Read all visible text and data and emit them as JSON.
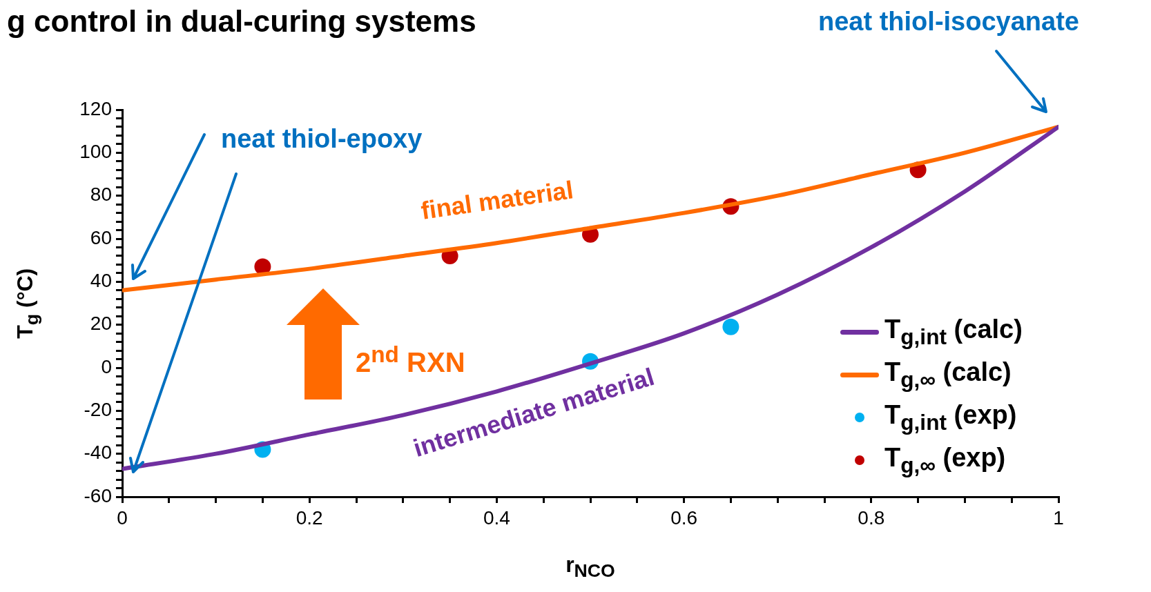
{
  "chart_data": {
    "type": "line",
    "title": "g control in dual-curing systems",
    "xlabel": "r$_{NCO}$",
    "ylabel": "T$_{g}$ (°C)",
    "xlim": [
      0,
      1
    ],
    "ylim": [
      -60,
      120
    ],
    "xticks": [
      0,
      {
        "value": 0.05,
        "label": null
      },
      {
        "value": 0.1,
        "label": null
      },
      {
        "value": 0.15,
        "label": null
      },
      0.2,
      {
        "value": 0.25,
        "label": null
      },
      {
        "value": 0.3,
        "label": null
      },
      {
        "value": 0.35,
        "label": null
      },
      0.4,
      {
        "value": 0.45,
        "label": null
      },
      {
        "value": 0.5,
        "label": null
      },
      {
        "value": 0.55,
        "label": null
      },
      0.6,
      {
        "value": 0.65,
        "label": null
      },
      {
        "value": 0.7,
        "label": null
      },
      {
        "value": 0.75,
        "label": null
      },
      0.8,
      {
        "value": 0.85,
        "label": null
      },
      {
        "value": 0.9,
        "label": null
      },
      {
        "value": 0.95,
        "label": null
      },
      1
    ],
    "yticks": [
      -60,
      {
        "value": -56,
        "label": null
      },
      {
        "value": -52,
        "label": null
      },
      {
        "value": -48,
        "label": null
      },
      {
        "value": -44,
        "label": null
      },
      -40,
      {
        "value": -36,
        "label": null
      },
      {
        "value": -32,
        "label": null
      },
      {
        "value": -28,
        "label": null
      },
      {
        "value": -24,
        "label": null
      },
      -20,
      {
        "value": -16,
        "label": null
      },
      {
        "value": -12,
        "label": null
      },
      {
        "value": -8,
        "label": null
      },
      {
        "value": -4,
        "label": null
      },
      0,
      {
        "value": 4,
        "label": null
      },
      {
        "value": 8,
        "label": null
      },
      {
        "value": 12,
        "label": null
      },
      {
        "value": 16,
        "label": null
      },
      20,
      {
        "value": 24,
        "label": null
      },
      {
        "value": 28,
        "label": null
      },
      {
        "value": 32,
        "label": null
      },
      {
        "value": 36,
        "label": null
      },
      40,
      {
        "value": 44,
        "label": null
      },
      {
        "value": 48,
        "label": null
      },
      {
        "value": 52,
        "label": null
      },
      {
        "value": 56,
        "label": null
      },
      60,
      {
        "value": 64,
        "label": null
      },
      {
        "value": 68,
        "label": null
      },
      {
        "value": 72,
        "label": null
      },
      {
        "value": 76,
        "label": null
      },
      80,
      {
        "value": 84,
        "label": null
      },
      {
        "value": 88,
        "label": null
      },
      {
        "value": 92,
        "label": null
      },
      {
        "value": 96,
        "label": null
      },
      100,
      {
        "value": 104,
        "label": null
      },
      {
        "value": 108,
        "label": null
      },
      {
        "value": 112,
        "label": null
      },
      {
        "value": 116,
        "label": null
      },
      120
    ],
    "grid": false,
    "legend": "bottom right",
    "series": [
      {
        "name": "T$_{g,int}$ (calc)",
        "type": "line",
        "marker": "none",
        "color": "#7030a0",
        "x": [
          0,
          0.1,
          0.2,
          0.3,
          0.4,
          0.5,
          0.6,
          0.7,
          0.8,
          0.9,
          1
        ],
        "values": [
          -47,
          -40,
          -31,
          -22,
          -11,
          2,
          16,
          34,
          56,
          82,
          112
        ]
      },
      {
        "name": "T$_{g,∞}$ (calc)",
        "type": "line",
        "marker": "none",
        "color": "#ff6a00",
        "x": [
          0,
          0.1,
          0.2,
          0.3,
          0.4,
          0.5,
          0.6,
          0.7,
          0.8,
          0.9,
          1
        ],
        "values": [
          36,
          41,
          46,
          52,
          58,
          65,
          72,
          80,
          90,
          100,
          112
        ]
      },
      {
        "name": "T$_{g,int}$ (exp)",
        "type": "scatter",
        "marker": "circle",
        "color": "#00b0f0",
        "x": [
          0.15,
          0.5,
          0.65
        ],
        "values": [
          -38,
          3,
          19
        ]
      },
      {
        "name": "T$_{g,∞}$ (exp)",
        "type": "scatter",
        "marker": "circle",
        "color": "#c00000",
        "x": [
          0.15,
          0.35,
          0.5,
          0.65,
          0.85
        ],
        "values": [
          47,
          52,
          62,
          75,
          92
        ]
      }
    ],
    "annotations": [
      "neat thiol-epoxy",
      "neat thiol-isocyanate",
      "final material",
      "intermediate material",
      "2$^{nd}$ RXN"
    ]
  }
}
